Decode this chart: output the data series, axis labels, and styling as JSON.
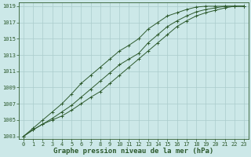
{
  "title": "Graphe pression niveau de la mer (hPa)",
  "xlabel_hours": [
    0,
    1,
    2,
    3,
    4,
    5,
    6,
    7,
    8,
    9,
    10,
    11,
    12,
    13,
    14,
    15,
    16,
    17,
    18,
    19,
    20,
    21,
    22,
    23
  ],
  "ylim": [
    1003,
    1019.5
  ],
  "yticks": [
    1003,
    1005,
    1007,
    1009,
    1011,
    1013,
    1015,
    1017,
    1019
  ],
  "background_color": "#cce8e8",
  "grid_color": "#aacccc",
  "line_color": "#2d5a2d",
  "line1": [
    1003.0,
    1003.8,
    1004.5,
    1005.0,
    1005.5,
    1006.2,
    1007.0,
    1007.8,
    1008.5,
    1009.5,
    1010.5,
    1011.5,
    1012.5,
    1013.5,
    1014.5,
    1015.5,
    1016.5,
    1017.2,
    1017.8,
    1018.2,
    1018.5,
    1018.8,
    1019.0,
    1019.0
  ],
  "line2": [
    1003.0,
    1003.8,
    1004.5,
    1005.2,
    1006.0,
    1006.8,
    1007.8,
    1008.8,
    1009.8,
    1010.8,
    1011.8,
    1012.5,
    1013.2,
    1014.5,
    1015.5,
    1016.5,
    1017.2,
    1017.8,
    1018.3,
    1018.6,
    1018.8,
    1019.0,
    1019.0,
    1019.0
  ],
  "line3": [
    1003.0,
    1004.0,
    1005.0,
    1006.0,
    1007.0,
    1008.2,
    1009.5,
    1010.5,
    1011.5,
    1012.5,
    1013.5,
    1014.2,
    1015.0,
    1016.2,
    1017.0,
    1017.8,
    1018.2,
    1018.6,
    1018.9,
    1019.0,
    1019.0,
    1019.0,
    1019.0,
    1019.0
  ],
  "title_fontsize": 6.5,
  "tick_fontsize": 5.0,
  "figsize": [
    3.2,
    2.0
  ],
  "dpi": 100
}
